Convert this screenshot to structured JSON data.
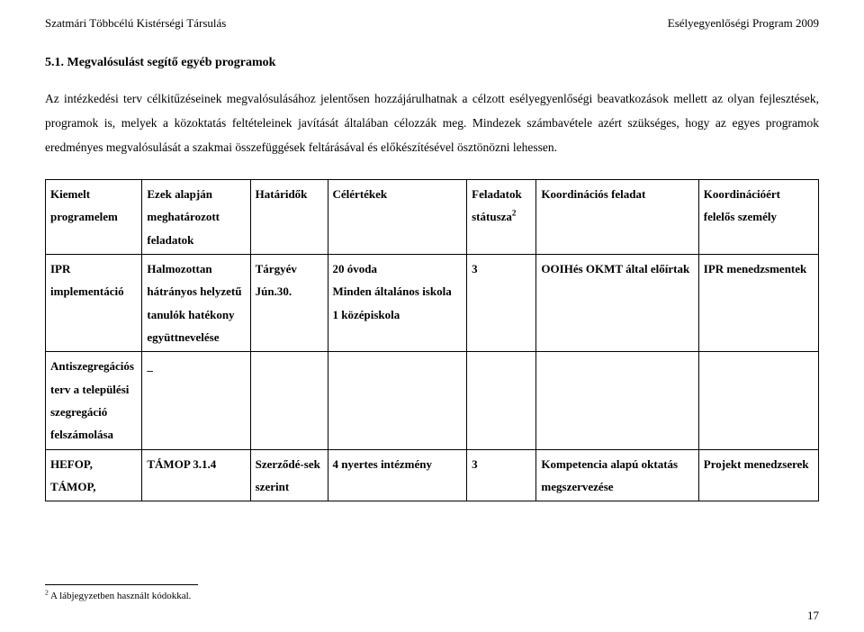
{
  "header": {
    "left": "Szatmári Többcélú Kistérségi Társulás",
    "right": "Esélyegyenlőségi Program  2009"
  },
  "section_title": "5.1.   Megvalósulást segítő egyéb programok",
  "body_text": "Az intézkedési terv célkitűzéseinek megvalósulásához jelentősen hozzájárulhatnak a célzott esélyegyenlőségi beavatkozások mellett az olyan fejlesztések, programok is, melyek a közoktatás feltételeinek javítását általában célozzák meg. Mindezek számbavétele azért szükséges, hogy az egyes programok eredményes megvalósulását a szakmai összefüggések feltárásával és előkészítésével ösztönözni lehessen.",
  "table": {
    "headers": {
      "c0": "Kiemelt programelem",
      "c1": "Ezek alapján meghatározott feladatok",
      "c2": "Határidők",
      "c3": "Célértékek",
      "c4a": "Feladatok státusza",
      "c4b": "2",
      "c5": "Koordinációs feladat",
      "c6": "Koordinációért felelős személy"
    },
    "rows": [
      {
        "c0": "IPR implementáció",
        "c1": "Halmozottan hátrányos helyzetű tanulók hatékony együttnevelése",
        "c2": "Tárgyév Jún.30.",
        "c3": "20 óvoda\nMinden általános iskola\n1 középiskola",
        "c4": "3",
        "c5": "OOIHés OKMT által előírtak",
        "c6": "IPR menedzsmentek"
      },
      {
        "c0": "Antiszegregációs terv a települési szegregáció felszámolása",
        "c1": "_",
        "c2": "",
        "c3": "",
        "c4": "",
        "c5": "",
        "c6": ""
      },
      {
        "c0": "HEFOP, TÁMOP,",
        "c1": "TÁMOP 3.1.4",
        "c2": "Szerződé-sek szerint",
        "c3": "4 nyertes intézmény",
        "c4": "3",
        "c5": "Kompetencia alapú oktatás megszervezése",
        "c6": "Projekt menedzserek"
      }
    ]
  },
  "footnote": {
    "marker": "2",
    "text": " A  lábjegyzetben használt kódokkal."
  },
  "page_number": "17"
}
